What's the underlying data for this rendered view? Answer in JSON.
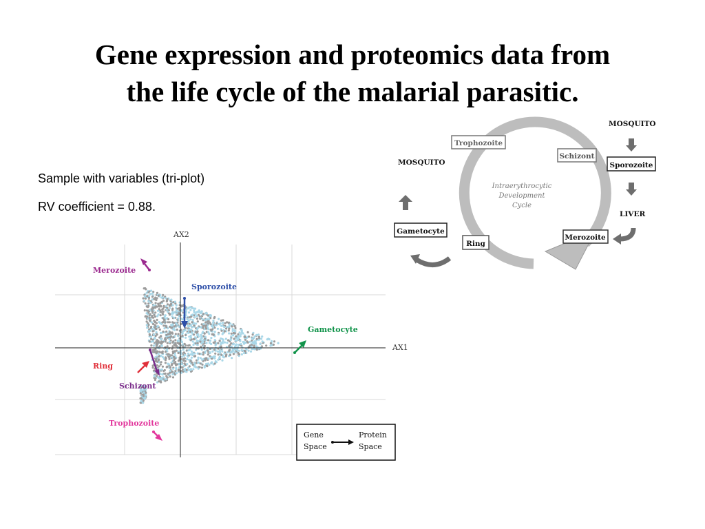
{
  "title_line1": "Gene expression and proteomics data from",
  "title_line2": "the life cycle of the malarial parasitic.",
  "subtitle_1": "Sample with variables (tri-plot)",
  "subtitle_2": "RV coefficient = 0.88.",
  "triplot": {
    "axis_x_label": "AX1",
    "axis_y_label": "AX2",
    "stage_labels": {
      "merozoite": "Merozoite",
      "sporozoite": "Sporozoite",
      "gametocyte": "Gametocyte",
      "ring": "Ring",
      "schizont": "Schizont",
      "trophozoite": "Trophozoite"
    },
    "colors": {
      "merozoite": "#9b2a8f",
      "sporozoite": "#2e4fa8",
      "gametocyte": "#11934a",
      "ring": "#e0303a",
      "schizont": "#7a2c8a",
      "trophozoite": "#e2379c",
      "points_light": "#a9d7e8",
      "points_gray": "#9c9c9c"
    },
    "legend": {
      "gene_line1": "Gene",
      "gene_line2": "Space",
      "protein_line1": "Protein",
      "protein_line2": "Space"
    }
  },
  "cycle": {
    "center_line1": "Intraerythrocytic",
    "center_line2": "Development",
    "center_line3": "Cycle",
    "trophozoite": "Trophozoite",
    "schizont": "Schizont",
    "merozoite": "Merozoite",
    "ring": "Ring",
    "gametocyte": "Gametocyte",
    "sporozoite": "Sporozoite",
    "mosquito_left": "MOSQUITO",
    "mosquito_right": "MOSQUITO",
    "liver": "LIVER"
  }
}
